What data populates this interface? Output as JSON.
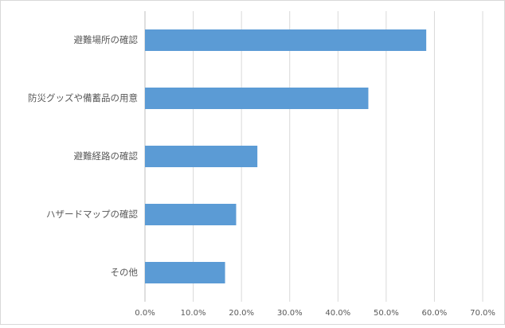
{
  "chart_data": {
    "type": "bar",
    "orientation": "horizontal",
    "categories": [
      "避難場所の確認",
      "防災グッズや備蓄品の用意",
      "避難経路の確認",
      "ハザードマップの確認",
      "その他"
    ],
    "values": [
      58.3,
      46.3,
      23.3,
      18.9,
      16.6
    ],
    "xlim": [
      0,
      70
    ],
    "xticks": [
      "0.0%",
      "10.0%",
      "20.0%",
      "30.0%",
      "40.0%",
      "50.0%",
      "60.0%",
      "70.0%"
    ],
    "grid": true,
    "legend": "none",
    "bar_color": "#5b9bd5",
    "grid_color": "#d9d9d9",
    "text_color": "#595959"
  }
}
